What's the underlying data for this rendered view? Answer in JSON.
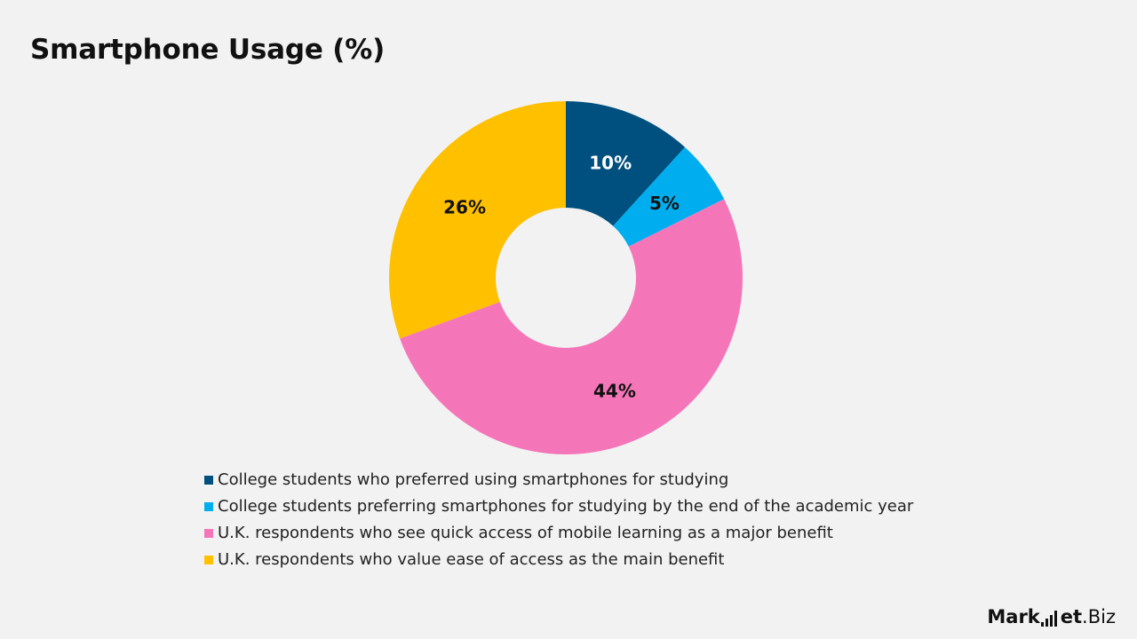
{
  "chart_data": {
    "type": "pie",
    "title": "Smartphone Usage (%)",
    "series": [
      {
        "name": "College students who preferred using smartphones for studying",
        "value": 10,
        "label": "10%",
        "color": "#00507f",
        "label_color": "#ffffff"
      },
      {
        "name": "College students preferring smartphones for studying by the end of the academic year",
        "value": 5,
        "label": "5%",
        "color": "#00aeef",
        "label_color": "#111111"
      },
      {
        "name": "U.K. respondents who see quick access of mobile learning as a major benefit",
        "value": 44,
        "label": "44%",
        "color": "#f476b9",
        "label_color": "#111111"
      },
      {
        "name": "U.K. respondents who value ease of access as the main benefit",
        "value": 26,
        "label": "26%",
        "color": "#ffc000",
        "label_color": "#111111"
      }
    ],
    "legend_position": "bottom-center",
    "style": "donut"
  },
  "brand": {
    "text_bold": "Mark",
    "text_bars_after": "et",
    "text_tail": ".Biz"
  }
}
